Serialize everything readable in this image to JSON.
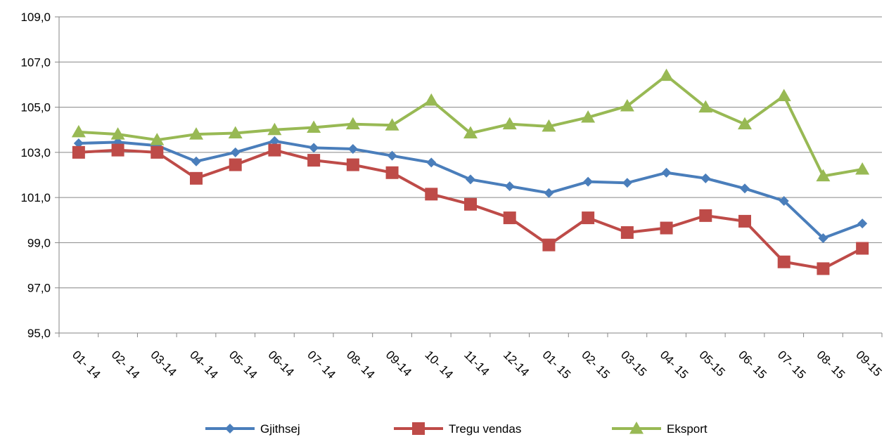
{
  "chart_data": {
    "type": "line",
    "title": "",
    "xlabel": "",
    "ylabel": "",
    "categories": [
      "01- 14",
      "02- 14",
      "03-14",
      "04- 14",
      "05- 14",
      "06-14",
      "07- 14",
      "08- 14",
      "09-14",
      "10- 14",
      "11-14",
      "12-14",
      "01- 15",
      "02- 15",
      "03-15",
      "04- 15",
      "05-15",
      "06- 15",
      "07- 15",
      "08- 15",
      "09-15"
    ],
    "ylim": [
      95,
      109
    ],
    "yticks": [
      95,
      97,
      99,
      101,
      103,
      105,
      107,
      109
    ],
    "ytick_labels": [
      "95,0",
      "97,0",
      "99,0",
      "101,0",
      "103,0",
      "105,0",
      "107,0",
      "109,0"
    ],
    "grid": true,
    "legend": "bottom",
    "series": [
      {
        "name": "Gjithsej",
        "color": "#4a7ebb",
        "marker": "diamond",
        "values": [
          103.4,
          103.45,
          103.3,
          102.6,
          103.0,
          103.5,
          103.2,
          103.15,
          102.85,
          102.55,
          101.8,
          101.5,
          101.2,
          101.7,
          101.65,
          102.1,
          101.85,
          101.4,
          100.85,
          99.2,
          99.85
        ]
      },
      {
        "name": "Tregu vendas",
        "color": "#be4b48",
        "marker": "square",
        "values": [
          103.0,
          103.1,
          103.0,
          101.85,
          102.45,
          103.1,
          102.65,
          102.45,
          102.1,
          101.15,
          100.7,
          100.1,
          98.9,
          100.1,
          99.45,
          99.65,
          100.2,
          99.95,
          98.15,
          97.85,
          98.75
        ]
      },
      {
        "name": "Eksport",
        "color": "#98b954",
        "marker": "triangle",
        "values": [
          103.9,
          103.8,
          103.55,
          103.8,
          103.85,
          104.0,
          104.1,
          104.25,
          104.2,
          105.3,
          103.85,
          104.25,
          104.15,
          104.55,
          105.05,
          106.4,
          105.0,
          104.25,
          105.5,
          101.95,
          102.25
        ]
      }
    ]
  }
}
